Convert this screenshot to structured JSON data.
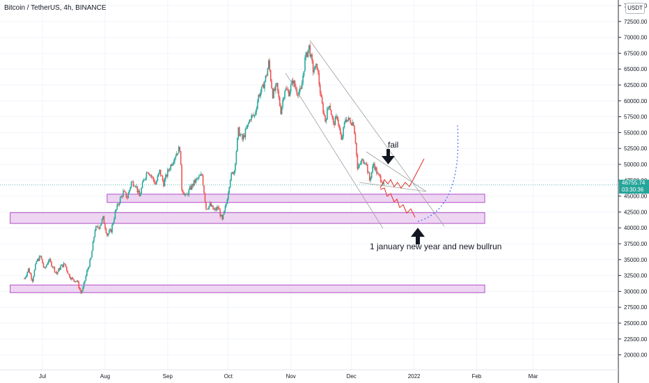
{
  "header": {
    "symbol_title": "Bitcoin / TetherUS, 4h, BINANCE",
    "currency_badge": "USDT"
  },
  "price_tag": {
    "price": "46755.74",
    "countdown": "03:30:36",
    "color": "#26a69a"
  },
  "annotations": {
    "fail": "fail",
    "bullrun": "1 january new year and new bullrun"
  },
  "colors": {
    "up": "#26a69a",
    "down": "#ef5350",
    "zone_fill": "#e8c8ee",
    "zone_border": "#b04cc4",
    "projection_red": "#e53935",
    "projection_blue": "#2962ff",
    "trendline": "#9e9e9e",
    "arrow": "#131722",
    "grid": "#f0f3fa"
  },
  "chart_data": {
    "type": "candlestick",
    "title": "Bitcoin / TetherUS, 4h, BINANCE",
    "y_axis": {
      "side": "right",
      "ticks": [
        20000,
        22500,
        25000,
        27500,
        30000,
        32500,
        35000,
        37500,
        40000,
        42500,
        45000,
        47500,
        50000,
        52500,
        55000,
        57500,
        60000,
        62500,
        65000,
        67500,
        70000,
        72500,
        75000
      ],
      "tick_labels": [
        "20000.00",
        "22500.00",
        "25000.00",
        "27500.00",
        "30000.00",
        "32500.00",
        "35000.00",
        "37500.00",
        "40000.00",
        "42500.00",
        "45000.00",
        "47500.00",
        "50000.00",
        "52500.00",
        "55000.00",
        "57500.00",
        "60000.00",
        "62500.00",
        "65000.00",
        "67500.00",
        "70000.00",
        "72500.00",
        "75000.00"
      ]
    },
    "x_axis": {
      "ticks": [
        "2021-07-01",
        "2021-08-01",
        "2021-09-01",
        "2021-10-01",
        "2021-11-01",
        "2021-12-01",
        "2022-01-01",
        "2022-02-01",
        "2022-03-01"
      ],
      "tick_labels": [
        "Jul",
        "Aug",
        "Sep",
        "Oct",
        "Nov",
        "Dec",
        "2022",
        "Feb",
        "Mar"
      ]
    },
    "price_series": [
      [
        "2021-06-22",
        32000
      ],
      [
        "2021-06-24",
        33500
      ],
      [
        "2021-06-26",
        31800
      ],
      [
        "2021-06-28",
        34700
      ],
      [
        "2021-06-30",
        35500
      ],
      [
        "2021-07-02",
        33400
      ],
      [
        "2021-07-04",
        35000
      ],
      [
        "2021-07-06",
        34000
      ],
      [
        "2021-07-08",
        32800
      ],
      [
        "2021-07-10",
        33900
      ],
      [
        "2021-07-12",
        34300
      ],
      [
        "2021-07-14",
        32600
      ],
      [
        "2021-07-16",
        31800
      ],
      [
        "2021-07-18",
        31700
      ],
      [
        "2021-07-20",
        29800
      ],
      [
        "2021-07-21",
        30400
      ],
      [
        "2021-07-23",
        33100
      ],
      [
        "2021-07-25",
        35200
      ],
      [
        "2021-07-27",
        39800
      ],
      [
        "2021-07-29",
        40200
      ],
      [
        "2021-07-31",
        41500
      ],
      [
        "2021-08-02",
        38900
      ],
      [
        "2021-08-04",
        39600
      ],
      [
        "2021-08-06",
        42400
      ],
      [
        "2021-08-08",
        44200
      ],
      [
        "2021-08-10",
        45600
      ],
      [
        "2021-08-12",
        44800
      ],
      [
        "2021-08-14",
        47200
      ],
      [
        "2021-08-16",
        46900
      ],
      [
        "2021-08-18",
        44900
      ],
      [
        "2021-08-20",
        47400
      ],
      [
        "2021-08-22",
        49100
      ],
      [
        "2021-08-24",
        48100
      ],
      [
        "2021-08-26",
        46900
      ],
      [
        "2021-08-28",
        48900
      ],
      [
        "2021-08-30",
        47000
      ],
      [
        "2021-09-01",
        48800
      ],
      [
        "2021-09-03",
        50200
      ],
      [
        "2021-09-05",
        51600
      ],
      [
        "2021-09-07",
        52600
      ],
      [
        "2021-09-08",
        46200
      ],
      [
        "2021-09-10",
        44900
      ],
      [
        "2021-09-12",
        46100
      ],
      [
        "2021-09-14",
        47100
      ],
      [
        "2021-09-16",
        47800
      ],
      [
        "2021-09-18",
        48300
      ],
      [
        "2021-09-20",
        43100
      ],
      [
        "2021-09-22",
        43600
      ],
      [
        "2021-09-24",
        42700
      ],
      [
        "2021-09-26",
        43200
      ],
      [
        "2021-09-28",
        41100
      ],
      [
        "2021-09-30",
        43800
      ],
      [
        "2021-10-02",
        47900
      ],
      [
        "2021-10-04",
        49100
      ],
      [
        "2021-10-06",
        55300
      ],
      [
        "2021-10-08",
        53900
      ],
      [
        "2021-10-10",
        55500
      ],
      [
        "2021-10-12",
        57400
      ],
      [
        "2021-10-14",
        57700
      ],
      [
        "2021-10-16",
        60800
      ],
      [
        "2021-10-18",
        62000
      ],
      [
        "2021-10-20",
        64200
      ],
      [
        "2021-10-21",
        66000
      ],
      [
        "2021-10-23",
        61000
      ],
      [
        "2021-10-25",
        62300
      ],
      [
        "2021-10-27",
        58400
      ],
      [
        "2021-10-29",
        61900
      ],
      [
        "2021-10-31",
        61300
      ],
      [
        "2021-11-02",
        63200
      ],
      [
        "2021-11-04",
        61400
      ],
      [
        "2021-11-06",
        61500
      ],
      [
        "2021-11-08",
        66500
      ],
      [
        "2021-11-10",
        68500
      ],
      [
        "2021-11-12",
        64800
      ],
      [
        "2021-11-14",
        65400
      ],
      [
        "2021-11-16",
        60100
      ],
      [
        "2021-11-18",
        56900
      ],
      [
        "2021-11-20",
        59700
      ],
      [
        "2021-11-22",
        56300
      ],
      [
        "2021-11-24",
        57500
      ],
      [
        "2021-11-26",
        53600
      ],
      [
        "2021-11-28",
        57200
      ],
      [
        "2021-11-30",
        56900
      ],
      [
        "2021-12-02",
        56500
      ],
      [
        "2021-12-03",
        53700
      ],
      [
        "2021-12-04",
        49200
      ],
      [
        "2021-12-06",
        50500
      ],
      [
        "2021-12-08",
        50600
      ],
      [
        "2021-12-10",
        47500
      ],
      [
        "2021-12-12",
        50100
      ],
      [
        "2021-12-14",
        48300
      ],
      [
        "2021-12-16",
        47600
      ],
      [
        "2021-12-17",
        46700
      ]
    ],
    "zones": [
      {
        "from": "2021-08-02",
        "to": "2022-02-05",
        "low": 44000,
        "high": 45300
      },
      {
        "from": "2021-06-15",
        "to": "2022-02-05",
        "low": 40700,
        "high": 42400
      },
      {
        "from": "2021-06-15",
        "to": "2022-02-05",
        "low": 29800,
        "high": 31000
      }
    ],
    "last_price": 46755.74
  }
}
